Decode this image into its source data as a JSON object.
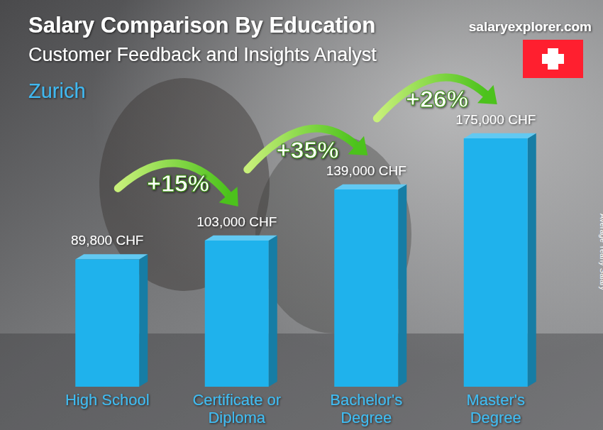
{
  "chart_data": {
    "type": "bar",
    "title": "Salary Comparison By Education",
    "subtitle": "Customer Feedback and Insights Analyst",
    "location": "Zurich",
    "source": "salaryexplorer.com",
    "y_label": "Average Yearly Salary",
    "categories": [
      "High School",
      "Certificate or Diploma",
      "Bachelor's Degree",
      "Master's Degree"
    ],
    "values": [
      89800,
      103000,
      139000,
      175000
    ],
    "value_labels": [
      "89,800 CHF",
      "103,000 CHF",
      "139,000 CHF",
      "175,000 CHF"
    ],
    "annotations": [
      "+15%",
      "+35%",
      "+26%"
    ],
    "color": "#1fb2ec",
    "ylim": [
      0,
      190000
    ],
    "data_labels": true,
    "tick_labels": false
  }
}
